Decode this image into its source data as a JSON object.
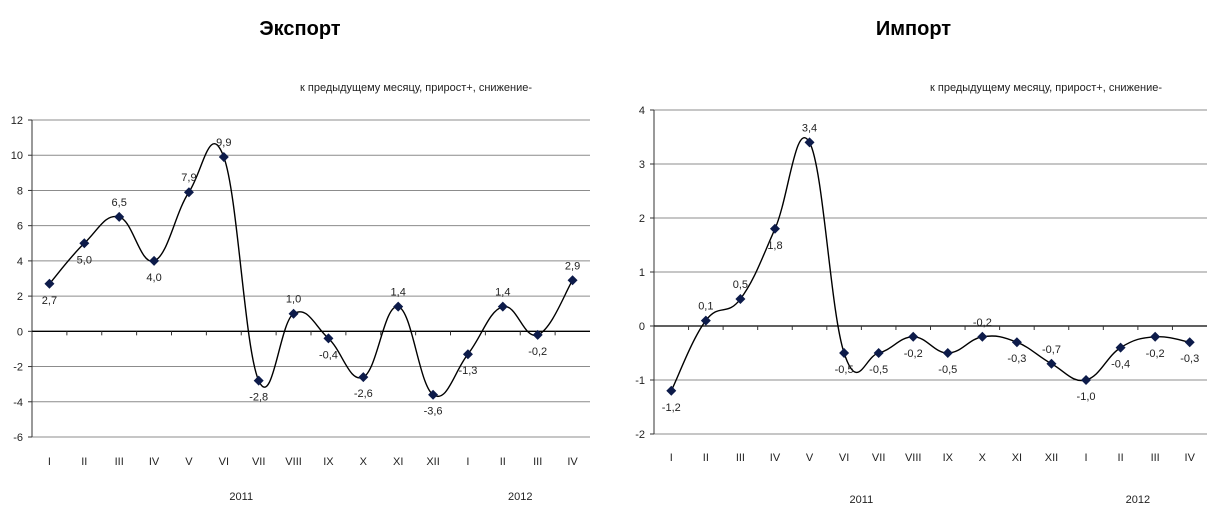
{
  "chart_data": [
    {
      "type": "line",
      "title": "Экспорт",
      "subtitle": "к предыдущему месяцу, прирост+, снижение-",
      "categories": [
        "I",
        "II",
        "III",
        "IV",
        "V",
        "VI",
        "VII",
        "VIII",
        "IX",
        "X",
        "XI",
        "XII",
        "I",
        "II",
        "III",
        "IV"
      ],
      "year_labels": [
        {
          "label": "2011",
          "from": 0,
          "to": 11
        },
        {
          "label": "2012",
          "from": 12,
          "to": 15
        }
      ],
      "values": [
        2.7,
        5.0,
        6.5,
        4.0,
        7.9,
        9.9,
        -2.8,
        1.0,
        -0.4,
        -2.6,
        1.4,
        -3.6,
        -1.3,
        1.4,
        -0.2,
        2.9
      ],
      "data_labels": [
        "2,7",
        "5,0",
        "6,5",
        "4,0",
        "7,9",
        "9,9",
        "-2,8",
        "1,0",
        "-0,4",
        "-2,6",
        "1,4",
        "-3,6",
        "-1,3",
        "1,4",
        "-0,2",
        "2,9"
      ],
      "label_position": [
        "below",
        "below",
        "above",
        "below",
        "above",
        "above",
        "below",
        "above",
        "below",
        "below",
        "above",
        "below",
        "below",
        "above",
        "below",
        "above"
      ],
      "ylim": [
        -6,
        12
      ],
      "yticks": [
        12,
        10,
        8,
        6,
        4,
        2,
        0,
        -2,
        -4,
        -6
      ],
      "grid": true,
      "line_color": "#000000",
      "marker_color": "#0d1b4a"
    },
    {
      "type": "line",
      "title": "Импорт",
      "subtitle": "к предыдущему месяцу, прирост+, снижение-",
      "categories": [
        "I",
        "II",
        "III",
        "IV",
        "V",
        "VI",
        "VII",
        "VIII",
        "IX",
        "X",
        "XI",
        "XII",
        "I",
        "II",
        "III",
        "IV"
      ],
      "year_labels": [
        {
          "label": "2011",
          "from": 0,
          "to": 11
        },
        {
          "label": "2012",
          "from": 12,
          "to": 15
        }
      ],
      "values": [
        -1.2,
        0.1,
        0.5,
        1.8,
        3.4,
        -0.5,
        -0.5,
        -0.2,
        -0.5,
        -0.2,
        -0.3,
        -0.7,
        -1.0,
        -0.4,
        -0.2,
        -0.3
      ],
      "data_labels": [
        "-1,2",
        "0,1",
        "0,5",
        "1,8",
        "3,4",
        "-0,5",
        "-0,5",
        "-0,2",
        "-0,5",
        "-0,2",
        "-0,3",
        "-0,7",
        "-1,0",
        "-0,4",
        "-0,2",
        "-0,3"
      ],
      "label_position": [
        "below",
        "above",
        "above",
        "below",
        "above",
        "below",
        "below",
        "below",
        "below",
        "above",
        "below",
        "above",
        "below",
        "below",
        "below",
        "below"
      ],
      "ylim": [
        -2,
        4
      ],
      "yticks": [
        4,
        3,
        2,
        1,
        0,
        -1,
        -2
      ],
      "grid": true,
      "line_color": "#000000",
      "marker_color": "#0d1b4a"
    }
  ]
}
